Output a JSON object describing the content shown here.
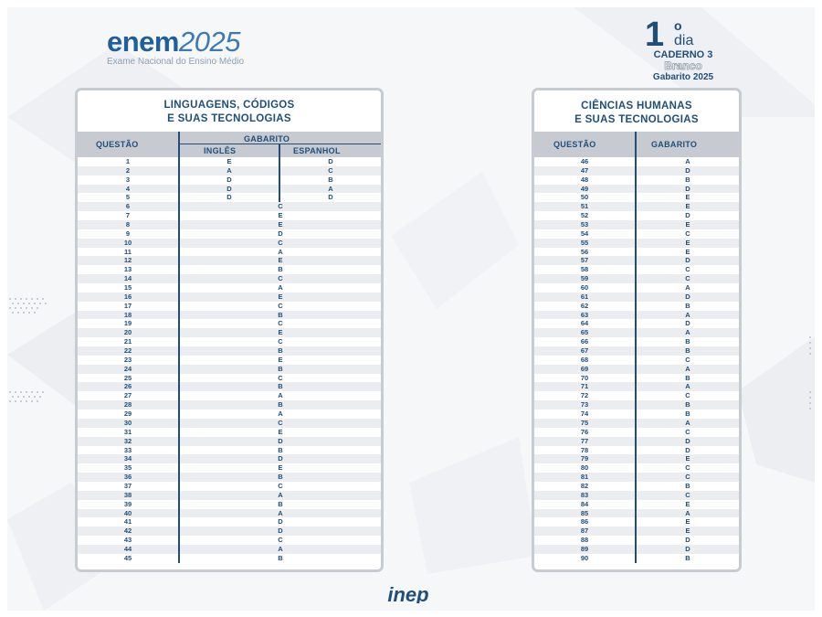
{
  "header": {
    "logo_enem": "enem",
    "logo_year": "2025",
    "logo_subtitle": "Exame Nacional do Ensino Médio",
    "day_number": "1",
    "day_ordinal": "o",
    "day_word": "dia",
    "caderno": "CADERNO 3",
    "cor": "Branco",
    "gabarito_year": "Gabarito 2025"
  },
  "left_panel": {
    "title_line1": "LINGUAGENS, CÓDIGOS",
    "title_line2": "E SUAS TECNOLOGIAS",
    "col_questao": "QUESTÃO",
    "col_gabarito": "GABARITO",
    "col_ingles": "INGLÊS",
    "col_espanhol": "ESPANHOL",
    "language_rows": [
      {
        "q": "1",
        "ingles": "E",
        "espanhol": "D"
      },
      {
        "q": "2",
        "ingles": "A",
        "espanhol": "C"
      },
      {
        "q": "3",
        "ingles": "D",
        "espanhol": "B"
      },
      {
        "q": "4",
        "ingles": "D",
        "espanhol": "A"
      },
      {
        "q": "5",
        "ingles": "D",
        "espanhol": "D"
      }
    ],
    "rows": [
      {
        "q": "6",
        "a": "C"
      },
      {
        "q": "7",
        "a": "E"
      },
      {
        "q": "8",
        "a": "E"
      },
      {
        "q": "9",
        "a": "D"
      },
      {
        "q": "10",
        "a": "C"
      },
      {
        "q": "11",
        "a": "A"
      },
      {
        "q": "12",
        "a": "E"
      },
      {
        "q": "13",
        "a": "B"
      },
      {
        "q": "14",
        "a": "C"
      },
      {
        "q": "15",
        "a": "A"
      },
      {
        "q": "16",
        "a": "E"
      },
      {
        "q": "17",
        "a": "C"
      },
      {
        "q": "18",
        "a": "B"
      },
      {
        "q": "19",
        "a": "C"
      },
      {
        "q": "20",
        "a": "E"
      },
      {
        "q": "21",
        "a": "C"
      },
      {
        "q": "22",
        "a": "B"
      },
      {
        "q": "23",
        "a": "E"
      },
      {
        "q": "24",
        "a": "B"
      },
      {
        "q": "25",
        "a": "C"
      },
      {
        "q": "26",
        "a": "B"
      },
      {
        "q": "27",
        "a": "A"
      },
      {
        "q": "28",
        "a": "B"
      },
      {
        "q": "29",
        "a": "A"
      },
      {
        "q": "30",
        "a": "C"
      },
      {
        "q": "31",
        "a": "E"
      },
      {
        "q": "32",
        "a": "D"
      },
      {
        "q": "33",
        "a": "B"
      },
      {
        "q": "34",
        "a": "D"
      },
      {
        "q": "35",
        "a": "E"
      },
      {
        "q": "36",
        "a": "B"
      },
      {
        "q": "37",
        "a": "C"
      },
      {
        "q": "38",
        "a": "A"
      },
      {
        "q": "39",
        "a": "B"
      },
      {
        "q": "40",
        "a": "A"
      },
      {
        "q": "41",
        "a": "D"
      },
      {
        "q": "42",
        "a": "D"
      },
      {
        "q": "43",
        "a": "C"
      },
      {
        "q": "44",
        "a": "A"
      },
      {
        "q": "45",
        "a": "B"
      }
    ]
  },
  "right_panel": {
    "title_line1": "CIÊNCIAS HUMANAS",
    "title_line2": "E SUAS TECNOLOGIAS",
    "col_questao": "QUESTÃO",
    "col_gabarito": "GABARITO",
    "rows": [
      {
        "q": "46",
        "a": "A"
      },
      {
        "q": "47",
        "a": "D"
      },
      {
        "q": "48",
        "a": "B"
      },
      {
        "q": "49",
        "a": "D"
      },
      {
        "q": "50",
        "a": "E"
      },
      {
        "q": "51",
        "a": "E"
      },
      {
        "q": "52",
        "a": "D"
      },
      {
        "q": "53",
        "a": "E"
      },
      {
        "q": "54",
        "a": "C"
      },
      {
        "q": "55",
        "a": "E"
      },
      {
        "q": "56",
        "a": "E"
      },
      {
        "q": "57",
        "a": "D"
      },
      {
        "q": "58",
        "a": "C"
      },
      {
        "q": "59",
        "a": "C"
      },
      {
        "q": "60",
        "a": "A"
      },
      {
        "q": "61",
        "a": "D"
      },
      {
        "q": "62",
        "a": "B"
      },
      {
        "q": "63",
        "a": "A"
      },
      {
        "q": "64",
        "a": "D"
      },
      {
        "q": "65",
        "a": "A"
      },
      {
        "q": "66",
        "a": "B"
      },
      {
        "q": "67",
        "a": "B"
      },
      {
        "q": "68",
        "a": "C"
      },
      {
        "q": "69",
        "a": "A"
      },
      {
        "q": "70",
        "a": "B"
      },
      {
        "q": "71",
        "a": "A"
      },
      {
        "q": "72",
        "a": "C"
      },
      {
        "q": "73",
        "a": "B"
      },
      {
        "q": "74",
        "a": "B"
      },
      {
        "q": "75",
        "a": "A"
      },
      {
        "q": "76",
        "a": "C"
      },
      {
        "q": "77",
        "a": "D"
      },
      {
        "q": "78",
        "a": "D"
      },
      {
        "q": "79",
        "a": "E"
      },
      {
        "q": "80",
        "a": "C"
      },
      {
        "q": "81",
        "a": "C"
      },
      {
        "q": "82",
        "a": "B"
      },
      {
        "q": "83",
        "a": "C"
      },
      {
        "q": "84",
        "a": "E"
      },
      {
        "q": "85",
        "a": "A"
      },
      {
        "q": "86",
        "a": "E"
      },
      {
        "q": "87",
        "a": "E"
      },
      {
        "q": "88",
        "a": "D"
      },
      {
        "q": "89",
        "a": "D"
      },
      {
        "q": "90",
        "a": "B"
      }
    ]
  },
  "footer": {
    "logo_text": "inep"
  },
  "colors": {
    "navy": "#1f4e79",
    "header_gray": "#c7cbd1",
    "stripe": "#ebedf0"
  }
}
